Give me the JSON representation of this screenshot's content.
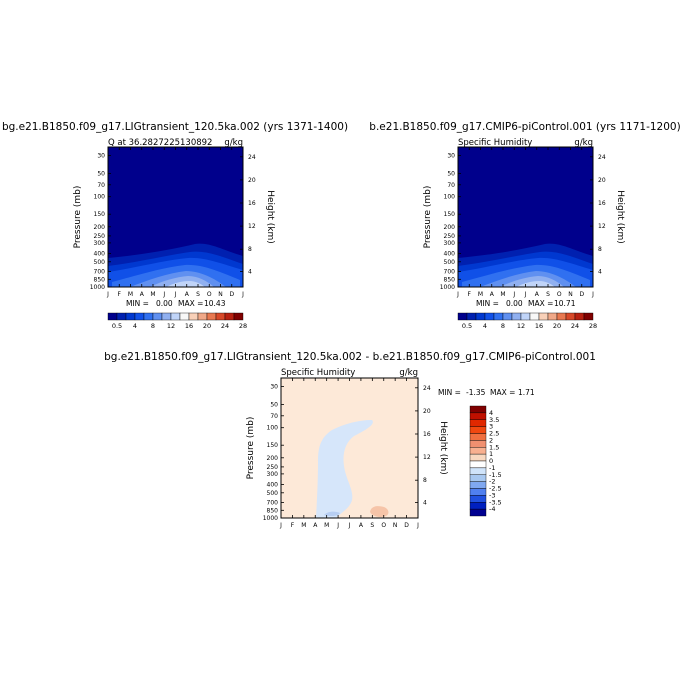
{
  "chart_data": [
    {
      "type": "heatmap",
      "title": "bg.e21.B1850.f09_g17.LIGtransient_120.5ka.002 (yrs 1371-1400)",
      "subtitle_left": "Q at 36.2827225130892",
      "subtitle_right": "g/kg",
      "xlabel": "",
      "ylabel": "Pressure (mb)",
      "ylabel_right": "Height (km)",
      "x_categories": [
        "J",
        "F",
        "M",
        "A",
        "M",
        "J",
        "J",
        "A",
        "S",
        "O",
        "N",
        "D",
        "J"
      ],
      "y_ticks": [
        "30",
        "50",
        "70",
        "100",
        "150",
        "200",
        "250",
        "300",
        "400",
        "500",
        "700",
        "850",
        "1000"
      ],
      "y_ticks_right": [
        "24",
        "20",
        "16",
        "12",
        "8",
        "4"
      ],
      "min_label": "MIN =",
      "min_value": "0.00",
      "max_label": "MAX =",
      "max_value": "10.43",
      "colorbar_labels": [
        "0.5",
        "4",
        "8",
        "12",
        "16",
        "20",
        "24",
        "28"
      ]
    },
    {
      "type": "heatmap",
      "title": "b.e21.B1850.f09_g17.CMIP6-piControl.001 (yrs 1171-1200)",
      "subtitle_left": "Specific Humidity",
      "subtitle_right": "g/kg",
      "xlabel": "",
      "ylabel": "Pressure (mb)",
      "ylabel_right": "Height (km)",
      "x_categories": [
        "J",
        "F",
        "M",
        "A",
        "M",
        "J",
        "J",
        "A",
        "S",
        "O",
        "N",
        "D",
        "J"
      ],
      "y_ticks": [
        "30",
        "50",
        "70",
        "100",
        "150",
        "200",
        "250",
        "300",
        "400",
        "500",
        "700",
        "850",
        "1000"
      ],
      "y_ticks_right": [
        "24",
        "20",
        "16",
        "12",
        "8",
        "4"
      ],
      "min_label": "MIN =",
      "min_value": "0.00",
      "max_label": "MAX =",
      "max_value": "10.71",
      "colorbar_labels": [
        "0.5",
        "4",
        "8",
        "12",
        "16",
        "20",
        "24",
        "28"
      ]
    },
    {
      "type": "heatmap",
      "title": "bg.e21.B1850.f09_g17.LIGtransient_120.5ka.002 - b.e21.B1850.f09_g17.CMIP6-piControl.001",
      "subtitle_left": "Specific Humidity",
      "subtitle_right": "g/kg",
      "xlabel": "",
      "ylabel": "Pressure (mb)",
      "ylabel_right": "Height (km)",
      "x_categories": [
        "J",
        "F",
        "M",
        "A",
        "M",
        "J",
        "J",
        "A",
        "S",
        "O",
        "N",
        "D",
        "J"
      ],
      "y_ticks": [
        "30",
        "50",
        "70",
        "100",
        "150",
        "200",
        "250",
        "300",
        "400",
        "500",
        "700",
        "850",
        "1000"
      ],
      "y_ticks_right": [
        "24",
        "20",
        "16",
        "12",
        "8",
        "4"
      ],
      "min_label": "MIN =",
      "min_value": "-1.35",
      "max_label": "MAX =",
      "max_value": "1.71",
      "colorbar_labels": [
        "4",
        "3.5",
        "3",
        "2.5",
        "2",
        "1.5",
        "1",
        "0",
        "-1",
        "-1.5",
        "-2",
        "-2.5",
        "-3",
        "-3.5",
        "-4"
      ]
    }
  ],
  "colors": {
    "abs_scale": [
      "#00008c",
      "#0020b0",
      "#0038d0",
      "#1050e8",
      "#3070f0",
      "#6090f0",
      "#90b0f0",
      "#c0d4f8",
      "#f8f8f8",
      "#f8d0b8",
      "#f0a888",
      "#e87850",
      "#d84828",
      "#b82010",
      "#800000"
    ],
    "diff_scale": [
      "#800000",
      "#c01000",
      "#e02800",
      "#f04810",
      "#f07040",
      "#f09070",
      "#f8b090",
      "#f8d8c0",
      "#ffffff",
      "#d0e4fa",
      "#a8c8f0",
      "#80a8f0",
      "#5080f0",
      "#2050e0",
      "#0020c0",
      "#000090"
    ],
    "diff_background": "#fde9d8",
    "diff_negative": "#d6e6fa",
    "diff_more_negative": "#b7cef2",
    "diff_positive": "#f6c4a8"
  }
}
